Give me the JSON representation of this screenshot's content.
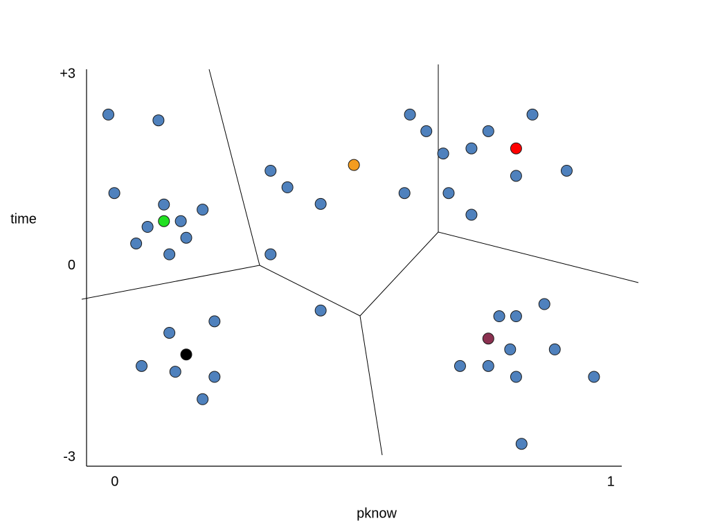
{
  "chart_data": {
    "type": "scatter",
    "x_label": "pknow",
    "y_label": "time",
    "xlim": [
      -0.057,
      1.022
    ],
    "ylim": [
      -3.14,
      3.08
    ],
    "xticks": [
      0,
      1
    ],
    "yticks": [
      {
        "value": 3,
        "label": "+3"
      },
      0,
      -3
    ],
    "grid": false,
    "series": [
      {
        "color": "#4f81bd",
        "x": [
          -0.013,
          0.088,
          -0.001,
          0.099,
          0.177,
          0.066,
          0.133,
          0.043,
          0.144,
          0.11,
          0.314,
          0.348,
          0.415,
          0.314,
          0.415,
          0.595,
          0.628,
          0.662,
          0.584,
          0.673,
          0.719,
          0.753,
          0.842,
          0.809,
          0.911,
          0.719,
          0.11,
          0.201,
          0.054,
          0.122,
          0.201,
          0.177,
          0.866,
          0.775,
          0.809,
          0.797,
          0.887,
          0.696,
          0.753,
          0.809,
          0.966,
          0.82
        ],
        "values": [
          2.37,
          2.28,
          1.14,
          0.96,
          0.88,
          0.61,
          0.7,
          0.35,
          0.44,
          0.18,
          1.49,
          1.23,
          0.97,
          0.18,
          -0.7,
          2.37,
          2.11,
          1.76,
          1.14,
          1.14,
          1.84,
          2.11,
          2.37,
          1.41,
          1.49,
          0.8,
          -1.05,
          -0.87,
          -1.57,
          -1.66,
          -1.74,
          -2.09,
          -0.6,
          -0.79,
          -0.79,
          -1.31,
          -1.31,
          -1.57,
          -1.57,
          -1.74,
          -1.74,
          -2.79
        ]
      },
      {
        "color": "#22e022",
        "x": [
          0.099
        ],
        "values": [
          0.7
        ]
      },
      {
        "color": "#f39c1f",
        "x": [
          0.482
        ],
        "values": [
          1.58
        ]
      },
      {
        "color": "#ff0000",
        "x": [
          0.809
        ],
        "values": [
          1.84
        ]
      },
      {
        "color": "#000000",
        "x": [
          0.144
        ],
        "values": [
          -1.39
        ]
      },
      {
        "color": "#8b3150",
        "x": [
          0.753
        ],
        "values": [
          -1.14
        ]
      }
    ]
  }
}
